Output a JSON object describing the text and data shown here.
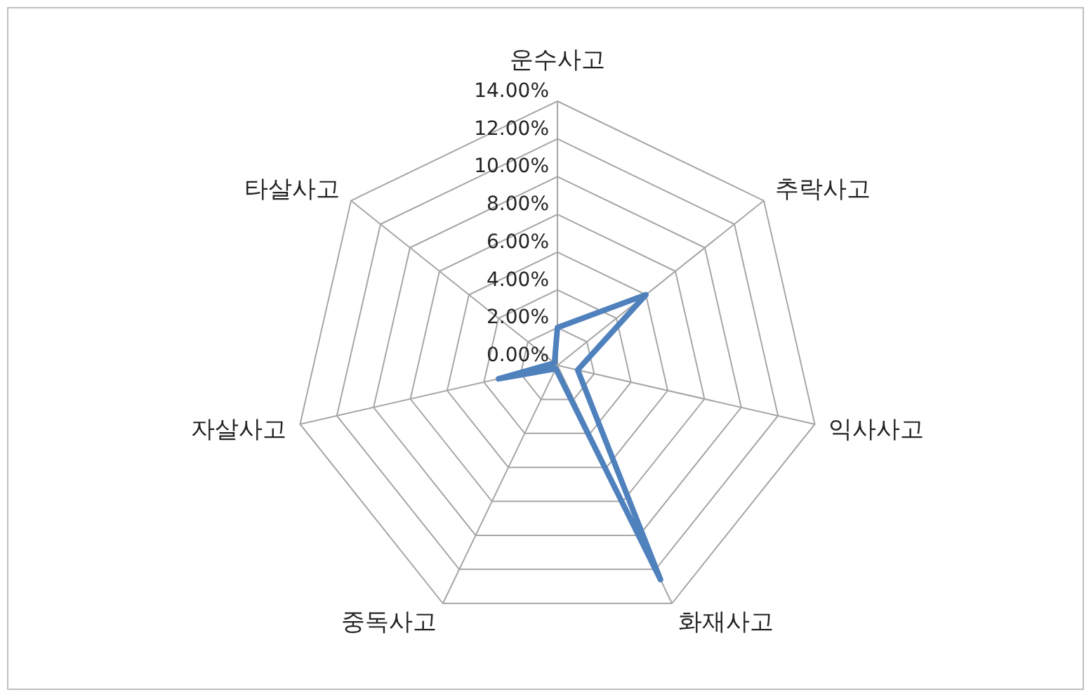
{
  "chart_data": {
    "type": "radar",
    "categories": [
      "운수사고",
      "추락사고",
      "익사사고",
      "화재사고",
      "중독사고",
      "자살사고",
      "타살사고"
    ],
    "series": [
      {
        "color": "#4f81bd",
        "values": [
          2.0,
          6.0,
          1.1,
          12.6,
          0.2,
          3.2,
          0.2
        ]
      }
    ],
    "ylim": [
      0,
      14
    ],
    "yticks": [
      {
        "value": 0,
        "label": "0.00%"
      },
      {
        "value": 2,
        "label": "2.00%"
      },
      {
        "value": 4,
        "label": "4.00%"
      },
      {
        "value": 6,
        "label": "6.00%"
      },
      {
        "value": 8,
        "label": "8.00%"
      },
      {
        "value": 10,
        "label": "10.00%"
      },
      {
        "value": 12,
        "label": "12.00%"
      },
      {
        "value": 14,
        "label": "14.00%"
      }
    ],
    "grid": true
  }
}
